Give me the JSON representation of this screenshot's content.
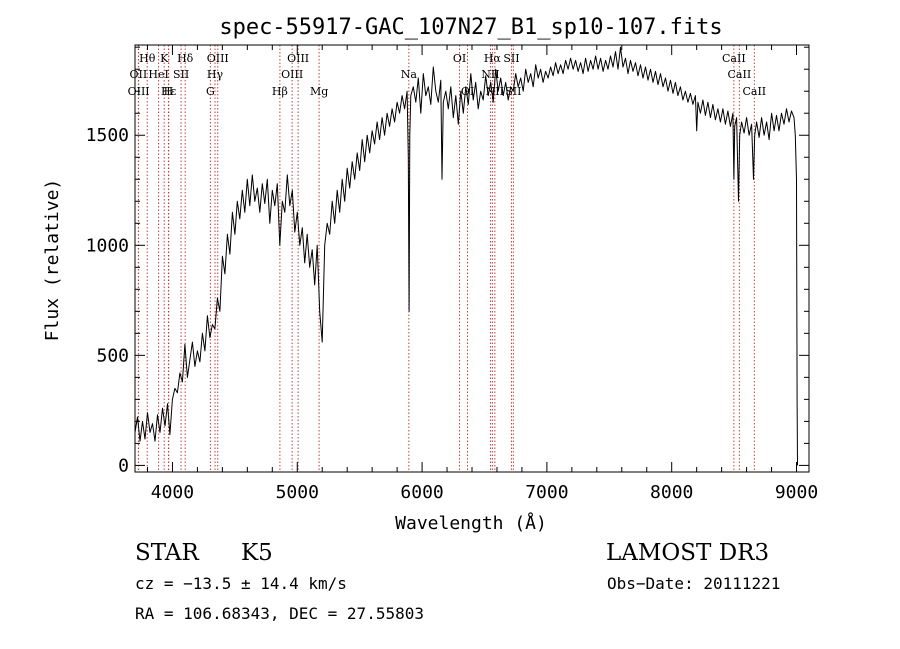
{
  "chart_data": {
    "type": "line",
    "title": "spec-55917-GAC_107N27_B1_sp10-107.fits",
    "xlabel": "Wavelength (Å)",
    "ylabel": "Flux (relative)",
    "xlim": [
      3700,
      9100
    ],
    "ylim": [
      -30,
      1910
    ],
    "x_ticks": [
      4000,
      5000,
      6000,
      7000,
      8000,
      9000
    ],
    "x_tick_labels": [
      "4000",
      "5000",
      "6000",
      "7000",
      "8000",
      "9000"
    ],
    "y_ticks": [
      0,
      500,
      1000,
      1500
    ],
    "y_tick_labels": [
      "0",
      "500",
      "1000",
      "1500"
    ],
    "grid": false,
    "series": [
      {
        "name": "spectrum",
        "color": "#000000",
        "points": [
          [
            3700,
            150
          ],
          [
            3720,
            220
          ],
          [
            3740,
            110
          ],
          [
            3760,
            200
          ],
          [
            3780,
            120
          ],
          [
            3800,
            240
          ],
          [
            3820,
            150
          ],
          [
            3840,
            190
          ],
          [
            3860,
            110
          ],
          [
            3880,
            230
          ],
          [
            3900,
            150
          ],
          [
            3920,
            260
          ],
          [
            3940,
            180
          ],
          [
            3960,
            280
          ],
          [
            3980,
            140
          ],
          [
            4000,
            300
          ],
          [
            4020,
            350
          ],
          [
            4040,
            330
          ],
          [
            4060,
            420
          ],
          [
            4080,
            380
          ],
          [
            4100,
            550
          ],
          [
            4120,
            400
          ],
          [
            4140,
            480
          ],
          [
            4160,
            560
          ],
          [
            4180,
            450
          ],
          [
            4200,
            520
          ],
          [
            4220,
            470
          ],
          [
            4240,
            600
          ],
          [
            4260,
            520
          ],
          [
            4280,
            680
          ],
          [
            4300,
            580
          ],
          [
            4320,
            640
          ],
          [
            4340,
            620
          ],
          [
            4360,
            760
          ],
          [
            4380,
            700
          ],
          [
            4400,
            950
          ],
          [
            4420,
            870
          ],
          [
            4440,
            1050
          ],
          [
            4460,
            960
          ],
          [
            4480,
            1150
          ],
          [
            4500,
            1050
          ],
          [
            4520,
            1200
          ],
          [
            4540,
            1120
          ],
          [
            4560,
            1250
          ],
          [
            4580,
            1150
          ],
          [
            4600,
            1300
          ],
          [
            4620,
            1180
          ],
          [
            4640,
            1320
          ],
          [
            4660,
            1200
          ],
          [
            4680,
            1260
          ],
          [
            4700,
            1150
          ],
          [
            4720,
            1280
          ],
          [
            4740,
            1190
          ],
          [
            4760,
            1300
          ],
          [
            4780,
            1100
          ],
          [
            4800,
            1250
          ],
          [
            4820,
            1180
          ],
          [
            4840,
            1280
          ],
          [
            4860,
            1000
          ],
          [
            4880,
            1200
          ],
          [
            4900,
            1150
          ],
          [
            4920,
            1320
          ],
          [
            4940,
            1180
          ],
          [
            4960,
            1250
          ],
          [
            4980,
            1060
          ],
          [
            5000,
            1150
          ],
          [
            5020,
            1000
          ],
          [
            5040,
            1080
          ],
          [
            5060,
            920
          ],
          [
            5080,
            1050
          ],
          [
            5100,
            900
          ],
          [
            5120,
            980
          ],
          [
            5140,
            820
          ],
          [
            5160,
            1000
          ],
          [
            5180,
            700
          ],
          [
            5200,
            560
          ],
          [
            5220,
            1000
          ],
          [
            5240,
            1100
          ],
          [
            5260,
            1050
          ],
          [
            5280,
            1200
          ],
          [
            5300,
            1100
          ],
          [
            5320,
            1250
          ],
          [
            5340,
            1150
          ],
          [
            5360,
            1300
          ],
          [
            5380,
            1200
          ],
          [
            5400,
            1350
          ],
          [
            5420,
            1260
          ],
          [
            5440,
            1380
          ],
          [
            5460,
            1300
          ],
          [
            5480,
            1420
          ],
          [
            5500,
            1340
          ],
          [
            5520,
            1480
          ],
          [
            5540,
            1380
          ],
          [
            5560,
            1500
          ],
          [
            5580,
            1420
          ],
          [
            5600,
            1520
          ],
          [
            5620,
            1460
          ],
          [
            5640,
            1560
          ],
          [
            5660,
            1480
          ],
          [
            5680,
            1580
          ],
          [
            5700,
            1500
          ],
          [
            5720,
            1600
          ],
          [
            5740,
            1540
          ],
          [
            5760,
            1620
          ],
          [
            5780,
            1560
          ],
          [
            5800,
            1650
          ],
          [
            5820,
            1600
          ],
          [
            5840,
            1680
          ],
          [
            5860,
            1620
          ],
          [
            5880,
            1700
          ],
          [
            5890,
            1400
          ],
          [
            5896,
            700
          ],
          [
            5902,
            1500
          ],
          [
            5910,
            1680
          ],
          [
            5930,
            1720
          ],
          [
            5950,
            1650
          ],
          [
            5970,
            1760
          ],
          [
            5990,
            1600
          ],
          [
            6010,
            1780
          ],
          [
            6030,
            1680
          ],
          [
            6050,
            1720
          ],
          [
            6070,
            1640
          ],
          [
            6090,
            1810
          ],
          [
            6110,
            1700
          ],
          [
            6130,
            1650
          ],
          [
            6150,
            1750
          ],
          [
            6160,
            1300
          ],
          [
            6170,
            1650
          ],
          [
            6190,
            1700
          ],
          [
            6210,
            1620
          ],
          [
            6230,
            1720
          ],
          [
            6250,
            1580
          ],
          [
            6270,
            1680
          ],
          [
            6290,
            1550
          ],
          [
            6310,
            1700
          ],
          [
            6330,
            1600
          ],
          [
            6350,
            1720
          ],
          [
            6370,
            1640
          ],
          [
            6390,
            1780
          ],
          [
            6410,
            1660
          ],
          [
            6430,
            1740
          ],
          [
            6450,
            1620
          ],
          [
            6470,
            1700
          ],
          [
            6490,
            1660
          ],
          [
            6510,
            1770
          ],
          [
            6530,
            1680
          ],
          [
            6550,
            1740
          ],
          [
            6570,
            1650
          ],
          [
            6590,
            1800
          ],
          [
            6610,
            1700
          ],
          [
            6630,
            1760
          ],
          [
            6650,
            1680
          ],
          [
            6670,
            1740
          ],
          [
            6690,
            1660
          ],
          [
            6710,
            1720
          ],
          [
            6730,
            1700
          ],
          [
            6750,
            1780
          ],
          [
            6770,
            1720
          ],
          [
            6790,
            1760
          ],
          [
            6810,
            1700
          ],
          [
            6830,
            1800
          ],
          [
            6850,
            1740
          ],
          [
            6870,
            1780
          ],
          [
            6890,
            1720
          ],
          [
            6910,
            1820
          ],
          [
            6930,
            1760
          ],
          [
            6950,
            1800
          ],
          [
            6970,
            1740
          ],
          [
            6990,
            1790
          ],
          [
            7010,
            1760
          ],
          [
            7030,
            1810
          ],
          [
            7050,
            1770
          ],
          [
            7070,
            1830
          ],
          [
            7090,
            1780
          ],
          [
            7110,
            1820
          ],
          [
            7130,
            1780
          ],
          [
            7150,
            1840
          ],
          [
            7170,
            1800
          ],
          [
            7190,
            1850
          ],
          [
            7210,
            1800
          ],
          [
            7230,
            1840
          ],
          [
            7250,
            1790
          ],
          [
            7270,
            1830
          ],
          [
            7290,
            1780
          ],
          [
            7310,
            1850
          ],
          [
            7330,
            1790
          ],
          [
            7350,
            1840
          ],
          [
            7370,
            1800
          ],
          [
            7390,
            1860
          ],
          [
            7410,
            1800
          ],
          [
            7430,
            1850
          ],
          [
            7450,
            1790
          ],
          [
            7470,
            1840
          ],
          [
            7490,
            1800
          ],
          [
            7510,
            1860
          ],
          [
            7530,
            1810
          ],
          [
            7550,
            1880
          ],
          [
            7570,
            1800
          ],
          [
            7590,
            1900
          ],
          [
            7610,
            1810
          ],
          [
            7630,
            1850
          ],
          [
            7650,
            1780
          ],
          [
            7670,
            1840
          ],
          [
            7690,
            1790
          ],
          [
            7710,
            1830
          ],
          [
            7730,
            1770
          ],
          [
            7750,
            1820
          ],
          [
            7770,
            1760
          ],
          [
            7790,
            1810
          ],
          [
            7810,
            1750
          ],
          [
            7830,
            1800
          ],
          [
            7850,
            1740
          ],
          [
            7870,
            1790
          ],
          [
            7890,
            1730
          ],
          [
            7910,
            1780
          ],
          [
            7930,
            1720
          ],
          [
            7950,
            1760
          ],
          [
            7970,
            1700
          ],
          [
            7990,
            1750
          ],
          [
            8010,
            1690
          ],
          [
            8030,
            1740
          ],
          [
            8050,
            1680
          ],
          [
            8070,
            1720
          ],
          [
            8090,
            1660
          ],
          [
            8110,
            1700
          ],
          [
            8130,
            1650
          ],
          [
            8150,
            1690
          ],
          [
            8170,
            1640
          ],
          [
            8190,
            1680
          ],
          [
            8200,
            1520
          ],
          [
            8210,
            1650
          ],
          [
            8230,
            1600
          ],
          [
            8250,
            1660
          ],
          [
            8270,
            1590
          ],
          [
            8290,
            1650
          ],
          [
            8310,
            1580
          ],
          [
            8330,
            1640
          ],
          [
            8350,
            1570
          ],
          [
            8370,
            1620
          ],
          [
            8390,
            1560
          ],
          [
            8410,
            1620
          ],
          [
            8430,
            1550
          ],
          [
            8450,
            1610
          ],
          [
            8470,
            1540
          ],
          [
            8490,
            1600
          ],
          [
            8498,
            1300
          ],
          [
            8505,
            1540
          ],
          [
            8520,
            1580
          ],
          [
            8535,
            1200
          ],
          [
            8545,
            1500
          ],
          [
            8560,
            1560
          ],
          [
            8580,
            1510
          ],
          [
            8600,
            1580
          ],
          [
            8620,
            1500
          ],
          [
            8640,
            1550
          ],
          [
            8655,
            1300
          ],
          [
            8665,
            1500
          ],
          [
            8680,
            1560
          ],
          [
            8700,
            1490
          ],
          [
            8720,
            1580
          ],
          [
            8740,
            1500
          ],
          [
            8760,
            1560
          ],
          [
            8780,
            1480
          ],
          [
            8800,
            1600
          ],
          [
            8820,
            1520
          ],
          [
            8840,
            1590
          ],
          [
            8860,
            1520
          ],
          [
            8880,
            1600
          ],
          [
            8900,
            1550
          ],
          [
            8920,
            1620
          ],
          [
            8940,
            1560
          ],
          [
            8960,
            1610
          ],
          [
            8980,
            1580
          ],
          [
            8990,
            1500
          ],
          [
            9000,
            1300
          ],
          [
            9005,
            300
          ],
          [
            9008,
            0
          ]
        ]
      }
    ],
    "line_markers": [
      {
        "label": "Hθ",
        "wave": 3798,
        "row": 1
      },
      {
        "label": "OII",
        "wave": 3727,
        "row": 2
      },
      {
        "label": "OIII",
        "wave": 3729,
        "row": 3
      },
      {
        "label": "K",
        "wave": 3934,
        "row": 1
      },
      {
        "label": "Hε",
        "wave": 3970,
        "row": 3
      },
      {
        "label": "HeI",
        "wave": 3889,
        "row": 2
      },
      {
        "label": "H",
        "wave": 3968,
        "row": 3
      },
      {
        "label": "SII",
        "wave": 4069,
        "row": 2
      },
      {
        "label": "Hδ",
        "wave": 4102,
        "row": 1
      },
      {
        "label": "G",
        "wave": 4304,
        "row": 3
      },
      {
        "label": "Hγ",
        "wave": 4341,
        "row": 2
      },
      {
        "label": "OIII",
        "wave": 4363,
        "row": 1
      },
      {
        "label": "Hβ",
        "wave": 4861,
        "row": 3
      },
      {
        "label": "OIII",
        "wave": 5007,
        "row": 1
      },
      {
        "label": "OIII",
        "wave": 4959,
        "row": 2
      },
      {
        "label": "Mg",
        "wave": 5175,
        "row": 3
      },
      {
        "label": "Na",
        "wave": 5894,
        "row": 2
      },
      {
        "label": "OI",
        "wave": 6300,
        "row": 1
      },
      {
        "label": "OI",
        "wave": 6364,
        "row": 3
      },
      {
        "label": "Hα",
        "wave": 6563,
        "row": 1
      },
      {
        "label": "NII",
        "wave": 6548,
        "row": 2
      },
      {
        "label": "NII",
        "wave": 6583,
        "row": 3
      },
      {
        "label": "SII",
        "wave": 6716,
        "row": 1
      },
      {
        "label": "SII",
        "wave": 6731,
        "row": 3
      },
      {
        "label": "CaII",
        "wave": 8498,
        "row": 1
      },
      {
        "label": "CaII",
        "wave": 8542,
        "row": 2
      },
      {
        "label": "CaII",
        "wave": 8662,
        "row": 3
      }
    ],
    "marker_color": "#c04040"
  },
  "info": {
    "class_label": "STAR",
    "subclass": "K5",
    "survey": "LAMOST DR3",
    "cz": "cz = −13.5 ± 14.4 km/s",
    "obs_date": "Obs−Date: 20111221",
    "radec": "RA = 106.68343, DEC =  27.55803"
  }
}
